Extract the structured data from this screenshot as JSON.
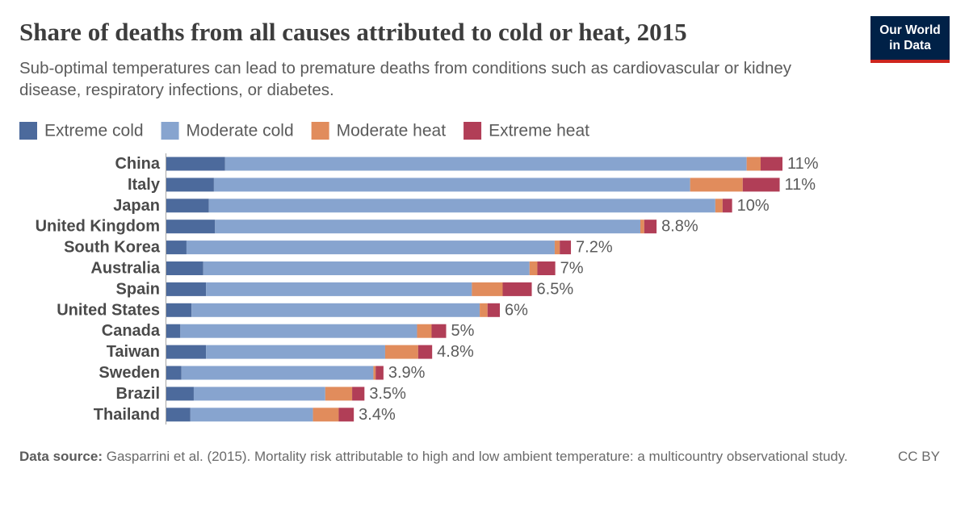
{
  "chart_data": {
    "type": "stacked-bar-horizontal",
    "title": "Share of deaths from all causes attributed to cold or heat, 2015",
    "subtitle": "Sub-optimal temperatures can lead to premature deaths from conditions such as cardiovascular or kidney disease, respiratory infections, or diabetes.",
    "logo": [
      "Our World",
      "in Data"
    ],
    "categories": [
      "China",
      "Italy",
      "Japan",
      "United Kingdom",
      "South Korea",
      "Australia",
      "Spain",
      "United States",
      "Canada",
      "Taiwan",
      "Sweden",
      "Brazil",
      "Thailand"
    ],
    "series": [
      {
        "name": "Extreme cold",
        "color": "#4c6a9c",
        "values": [
          1.05,
          0.85,
          0.76,
          0.87,
          0.36,
          0.66,
          0.71,
          0.45,
          0.25,
          0.71,
          0.27,
          0.49,
          0.43
        ]
      },
      {
        "name": "Moderate cold",
        "color": "#87a4cf",
        "values": [
          9.32,
          8.51,
          9.05,
          7.6,
          6.58,
          5.83,
          4.75,
          5.15,
          4.23,
          3.2,
          3.43,
          2.35,
          2.19
        ]
      },
      {
        "name": "Moderate heat",
        "color": "#e18c5c",
        "values": [
          0.25,
          0.94,
          0.13,
          0.07,
          0.09,
          0.14,
          0.55,
          0.14,
          0.26,
          0.59,
          0.04,
          0.48,
          0.46
        ]
      },
      {
        "name": "Extreme heat",
        "color": "#b13e57",
        "values": [
          0.39,
          0.66,
          0.17,
          0.22,
          0.2,
          0.32,
          0.52,
          0.22,
          0.26,
          0.25,
          0.14,
          0.22,
          0.27
        ]
      }
    ],
    "total_labels": [
      "11%",
      "11%",
      "10%",
      "8.8%",
      "7.2%",
      "7%",
      "6.5%",
      "6%",
      "5%",
      "4.8%",
      "3.9%",
      "3.5%",
      "3.4%"
    ],
    "source_label": "Data source:",
    "source_text": "Gasparrini et al. (2015). Mortality risk attributable to high and low ambient temperature: a multicountry observational study.",
    "license": "CC BY"
  }
}
